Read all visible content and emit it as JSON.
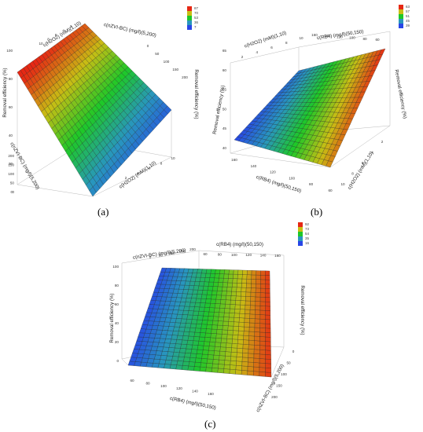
{
  "captions": [
    "(a)",
    "(b)",
    "(c)"
  ],
  "chart_data": [
    {
      "type": "surface",
      "panel": "a",
      "z_label": "Removal efficiency (%)",
      "axis_labels": [
        "c(H2O2) (mM)(1,10)",
        "c(nZVI-BC) (mg/l)(5,200)"
      ],
      "legend_values": [
        87,
        70,
        53,
        36,
        7
      ],
      "x_ticks": [
        "2",
        "4",
        "6",
        "8",
        "10"
      ],
      "y_ticks": [
        "0",
        "50",
        "100",
        "150",
        "200"
      ],
      "z_ticks": [
        "0",
        "20",
        "40",
        "60",
        "80",
        "100"
      ],
      "surface": {
        "high_corner": "red",
        "low_corner": "blue",
        "z_min": 5,
        "z_max": 90
      }
    },
    {
      "type": "surface",
      "panel": "b",
      "z_label": "Removal efficiency (%)",
      "axis_labels": [
        "c(H2O2) (mM)(1,10)",
        "c(RB4) (mg/l)(50,150)"
      ],
      "legend_values": [
        63,
        57,
        51,
        45,
        39
      ],
      "x_ticks": [
        "2",
        "4",
        "6",
        "8",
        "10"
      ],
      "y_ticks": [
        "60",
        "80",
        "100",
        "120",
        "140",
        "160"
      ],
      "z_ticks": [
        "40",
        "45",
        "50",
        "55",
        "60",
        "65"
      ],
      "surface": {
        "high_corner": "red",
        "low_corner": "blue",
        "z_min": 38,
        "z_max": 63
      }
    },
    {
      "type": "surface",
      "panel": "c",
      "z_label": "Removal efficiency (%)",
      "axis_labels": [
        "c(nZVI-BC) (mg/l)(5,200)",
        "c(RB4) (mg/l)(50,150)"
      ],
      "legend_values": [
        92,
        73,
        54,
        35,
        16
      ],
      "x_ticks": [
        "0",
        "50",
        "100",
        "150",
        "200"
      ],
      "y_ticks": [
        "60",
        "80",
        "100",
        "120",
        "140",
        "160"
      ],
      "z_ticks": [
        "0",
        "20",
        "40",
        "60",
        "80",
        "100"
      ],
      "surface": {
        "high_corner": "red",
        "low_corner": "blue",
        "z_min": 15,
        "z_max": 92
      }
    }
  ]
}
